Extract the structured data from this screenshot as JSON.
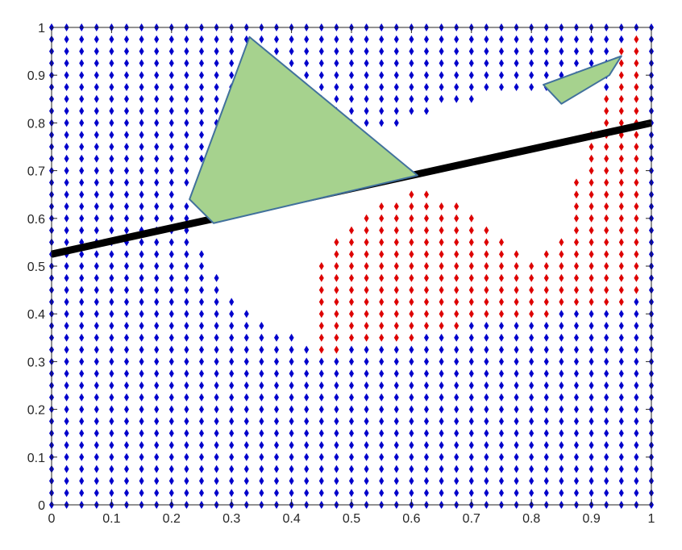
{
  "chart_data": {
    "type": "scatter",
    "title": "",
    "xlabel": "",
    "ylabel": "",
    "xlim": [
      0,
      1
    ],
    "ylim": [
      0,
      1
    ],
    "grid": false,
    "legend": "none",
    "x_ticks": [
      "0",
      "0.1",
      "0.2",
      "0.3",
      "0.4",
      "0.5",
      "0.6",
      "0.7",
      "0.8",
      "0.9",
      "1"
    ],
    "y_ticks": [
      "0",
      "0.1",
      "0.2",
      "0.3",
      "0.4",
      "0.5",
      "0.6",
      "0.7",
      "0.8",
      "0.9",
      "1"
    ],
    "point_grid": {
      "x_start": 0,
      "x_end": 1,
      "y_start": 0,
      "y_end": 1,
      "step": 0.025
    },
    "series": [
      {
        "color": "#0000cc",
        "marker": "diamond"
      },
      {
        "color": "#dd0000",
        "marker": "diamond"
      }
    ],
    "empty_region": [
      [
        0.22,
        0.65
      ],
      [
        0.25,
        0.55
      ],
      [
        0.3,
        0.45
      ],
      [
        0.35,
        0.38
      ],
      [
        0.42,
        0.34
      ],
      [
        0.45,
        0.36
      ],
      [
        0.55,
        0.38
      ],
      [
        0.65,
        0.38
      ],
      [
        0.75,
        0.4
      ],
      [
        0.85,
        0.42
      ],
      [
        0.9,
        0.45
      ],
      [
        0.95,
        0.5
      ],
      [
        0.98,
        0.8
      ],
      [
        0.92,
        0.88
      ],
      [
        0.85,
        0.87
      ],
      [
        0.75,
        0.86
      ],
      [
        0.65,
        0.83
      ],
      [
        0.58,
        0.8
      ],
      [
        0.52,
        0.78
      ],
      [
        0.35,
        0.95
      ]
    ],
    "red_region": [
      [
        0.44,
        0.31
      ],
      [
        0.55,
        0.34
      ],
      [
        0.65,
        0.36
      ],
      [
        0.75,
        0.4
      ],
      [
        0.85,
        0.4
      ],
      [
        0.95,
        0.42
      ],
      [
        0.98,
        0.43
      ],
      [
        0.98,
        1.0
      ],
      [
        0.96,
        1.0
      ],
      [
        0.92,
        0.85
      ],
      [
        0.88,
        0.7
      ],
      [
        0.85,
        0.55
      ],
      [
        0.8,
        0.52
      ],
      [
        0.72,
        0.6
      ],
      [
        0.62,
        0.66
      ],
      [
        0.55,
        0.64
      ],
      [
        0.5,
        0.58
      ],
      [
        0.45,
        0.52
      ],
      [
        0.43,
        0.4
      ]
    ],
    "decision_line": {
      "color": "#000000",
      "x": [
        0,
        1
      ],
      "y": [
        0.525,
        0.8
      ]
    },
    "polygons": [
      {
        "color": "#a6d28e",
        "stroke": "#41719c",
        "points": [
          [
            0.33,
            0.98
          ],
          [
            0.61,
            0.69
          ],
          [
            0.27,
            0.59
          ],
          [
            0.23,
            0.64
          ]
        ]
      },
      {
        "color": "#a6d28e",
        "stroke": "#41719c",
        "points": [
          [
            0.82,
            0.88
          ],
          [
            0.95,
            0.94
          ],
          [
            0.93,
            0.9
          ],
          [
            0.85,
            0.84
          ]
        ]
      }
    ]
  }
}
